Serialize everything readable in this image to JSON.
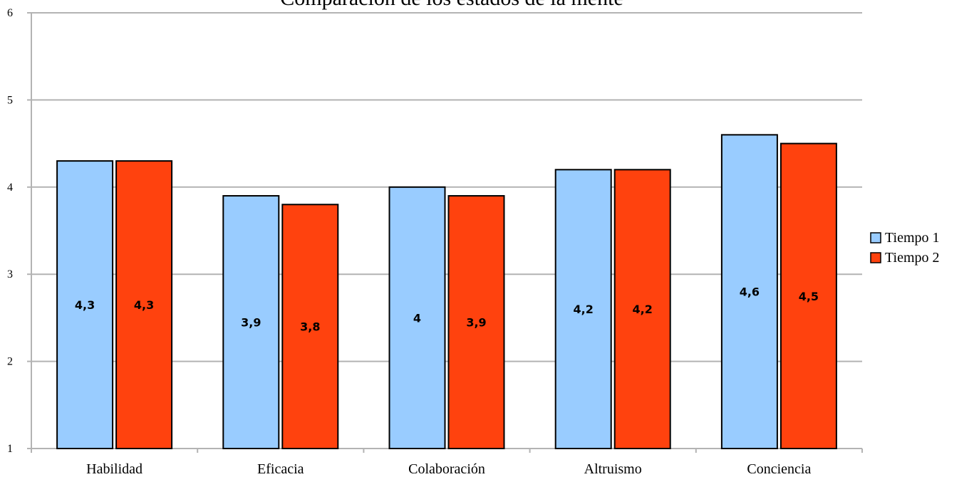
{
  "chart_data": {
    "type": "bar",
    "title": "Comparación de los estados de la mente",
    "categories": [
      "Habilidad",
      "Eficacia",
      "Colaboración",
      "Altruismo",
      "Conciencia"
    ],
    "series": [
      {
        "name": "Tiempo 1",
        "values": [
          4.3,
          3.9,
          4,
          4.2,
          4.6
        ],
        "labels": [
          "4,3",
          "3,9",
          "4",
          "4,2",
          "4,6"
        ],
        "color": "#99ccff"
      },
      {
        "name": "Tiempo 2",
        "values": [
          4.3,
          3.8,
          3.9,
          4.2,
          4.5
        ],
        "labels": [
          "4,3",
          "3,8",
          "3,9",
          "4,2",
          "4,5"
        ],
        "color": "#ff420e"
      }
    ],
    "y_ticks": [
      "1",
      "2",
      "3",
      "4",
      "5",
      "6"
    ],
    "ylim": [
      1,
      6
    ],
    "grid": true,
    "legend_position": "right"
  }
}
